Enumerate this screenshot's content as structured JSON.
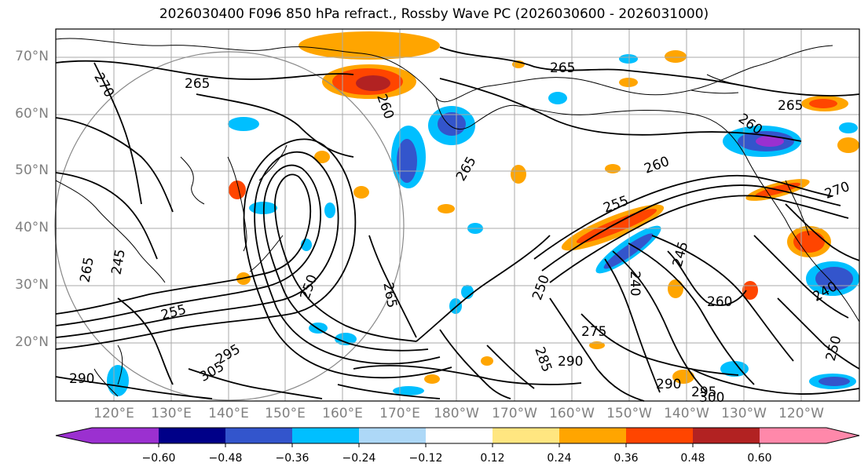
{
  "title": "2026030400 F096 850 hPa refract., Rossby Wave PC (2026030600 - 2026031000)",
  "map": {
    "lat_labels": [
      "70°N",
      "60°N",
      "50°N",
      "40°N",
      "30°N",
      "20°N"
    ],
    "lon_labels": [
      "120°E",
      "130°E",
      "140°E",
      "150°E",
      "160°E",
      "170°E",
      "180°W",
      "170°W",
      "160°W",
      "150°W",
      "140°W",
      "130°W",
      "120°W"
    ],
    "contour_labels": [
      "265",
      "270",
      "265",
      "260",
      "265",
      "260",
      "265",
      "260",
      "255",
      "250",
      "245",
      "265",
      "250",
      "265",
      "255",
      "295",
      "305",
      "290",
      "240",
      "285",
      "290",
      "275",
      "245",
      "250",
      "260",
      "295",
      "300",
      "290",
      "240",
      "270"
    ]
  },
  "colorbar": {
    "tick_labels": [
      "−0.60",
      "−0.48",
      "−0.36",
      "−0.24",
      "−0.12",
      "0.12",
      "0.24",
      "0.36",
      "0.48",
      "0.60"
    ],
    "colors": [
      "#9b30d0",
      "#000088",
      "#3355cc",
      "#00bfff",
      "#add8f7",
      "#ffffff",
      "#ffe680",
      "#ffa500",
      "#ff4500",
      "#b22222",
      "#ff88aa",
      "#ff88aa"
    ]
  }
}
